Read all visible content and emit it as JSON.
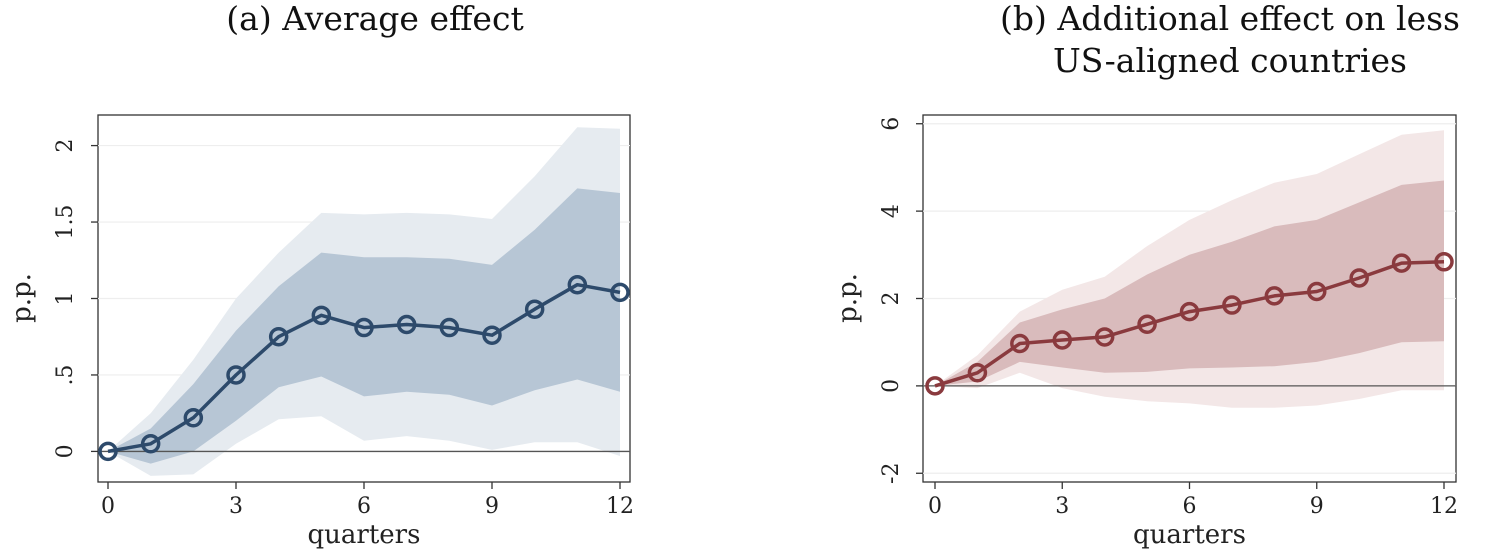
{
  "panels": {
    "a": {
      "title": "(a) Average effect"
    },
    "b": {
      "title_line1": "(b) Additional effect on less",
      "title_line2": "US-aligned countries"
    }
  },
  "chart_data": [
    {
      "type": "line",
      "title": "(a) Average effect",
      "xlabel": "quarters",
      "ylabel": "p.p.",
      "xlim": [
        0,
        12
      ],
      "ylim": [
        -0.2,
        2.2
      ],
      "xticks": [
        0,
        3,
        6,
        9,
        12
      ],
      "xtick_labels": [
        "0",
        "3",
        "6",
        "9",
        "12"
      ],
      "yticks": [
        0,
        0.5,
        1,
        1.5,
        2
      ],
      "ytick_labels": [
        "0",
        ".5",
        "1",
        "1.5",
        "2"
      ],
      "grid": true,
      "zero_line": true,
      "colors": {
        "line": "#2d4a6b",
        "inner_band": "#b7c6d5",
        "outer_band": "#e6ebf0"
      },
      "x": [
        0,
        1,
        2,
        3,
        4,
        5,
        6,
        7,
        8,
        9,
        10,
        11,
        12
      ],
      "series": [
        {
          "values": [
            0,
            0.05,
            0.22,
            0.5,
            0.75,
            0.89,
            0.81,
            0.83,
            0.81,
            0.76,
            0.93,
            1.09,
            1.04
          ]
        }
      ],
      "bands": {
        "inner_lower": [
          0,
          -0.08,
          0.0,
          0.2,
          0.42,
          0.49,
          0.36,
          0.39,
          0.37,
          0.3,
          0.4,
          0.47,
          0.39
        ],
        "inner_upper": [
          0,
          0.15,
          0.44,
          0.79,
          1.08,
          1.3,
          1.27,
          1.27,
          1.26,
          1.22,
          1.45,
          1.72,
          1.69
        ],
        "outer_lower": [
          0,
          -0.16,
          -0.15,
          0.05,
          0.21,
          0.23,
          0.07,
          0.1,
          0.07,
          0.01,
          0.06,
          0.06,
          -0.03
        ],
        "outer_upper": [
          0,
          0.25,
          0.6,
          1.0,
          1.3,
          1.56,
          1.55,
          1.56,
          1.55,
          1.52,
          1.8,
          2.12,
          2.11
        ]
      }
    },
    {
      "type": "line",
      "title": "(b) Additional effect on less US-aligned countries",
      "xlabel": "quarters",
      "ylabel": "p.p.",
      "xlim": [
        0,
        12
      ],
      "ylim": [
        -2.2,
        6.2
      ],
      "xticks": [
        0,
        3,
        6,
        9,
        12
      ],
      "xtick_labels": [
        "0",
        "3",
        "6",
        "9",
        "12"
      ],
      "yticks": [
        -2,
        0,
        2,
        4,
        6
      ],
      "ytick_labels": [
        "-2",
        "0",
        "2",
        "4",
        "6"
      ],
      "grid": true,
      "zero_line": true,
      "colors": {
        "line": "#8a3a3e",
        "inner_band": "#d9bbbc",
        "outer_band": "#f3e7e7"
      },
      "x": [
        0,
        1,
        2,
        3,
        4,
        5,
        6,
        7,
        8,
        9,
        10,
        11,
        12
      ],
      "series": [
        {
          "values": [
            0,
            0.3,
            0.97,
            1.05,
            1.12,
            1.41,
            1.7,
            1.85,
            2.06,
            2.16,
            2.47,
            2.81,
            2.84
          ]
        }
      ],
      "bands": {
        "inner_lower": [
          0,
          0.1,
          0.55,
          0.42,
          0.3,
          0.32,
          0.4,
          0.42,
          0.45,
          0.55,
          0.75,
          1.0,
          1.02
        ],
        "inner_upper": [
          0,
          0.55,
          1.45,
          1.75,
          2.0,
          2.55,
          3.0,
          3.3,
          3.65,
          3.8,
          4.2,
          4.6,
          4.7
        ],
        "outer_lower": [
          0,
          -0.05,
          0.3,
          -0.05,
          -0.25,
          -0.35,
          -0.4,
          -0.5,
          -0.5,
          -0.45,
          -0.3,
          -0.1,
          -0.1
        ],
        "outer_upper": [
          0,
          0.7,
          1.7,
          2.2,
          2.5,
          3.2,
          3.8,
          4.25,
          4.65,
          4.85,
          5.3,
          5.75,
          5.85
        ]
      }
    }
  ]
}
